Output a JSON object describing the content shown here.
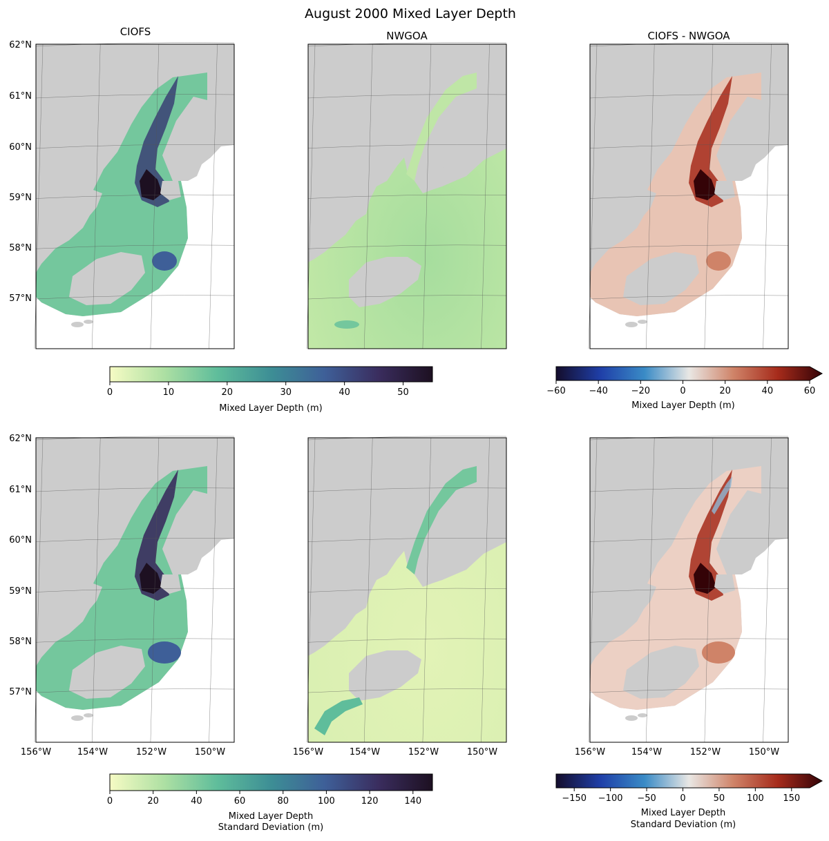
{
  "figure": {
    "title": "August 2000 Mixed Layer Depth",
    "panel_titles": [
      "CIOFS",
      "NWGOA",
      "CIOFS - NWGOA"
    ]
  },
  "axes": {
    "lat_labels": [
      "62°N",
      "61°N",
      "60°N",
      "59°N",
      "58°N",
      "57°N"
    ],
    "lon_labels": [
      "156°W",
      "154°W",
      "152°W",
      "150°W"
    ]
  },
  "colorbars": {
    "top_left": {
      "ticks": [
        "0",
        "10",
        "20",
        "30",
        "40",
        "50"
      ],
      "range": [
        0,
        55
      ],
      "label_lines": [
        "Mixed Layer Depth (m)"
      ]
    },
    "top_right": {
      "ticks": [
        "−60",
        "−40",
        "−20",
        "0",
        "20",
        "40",
        "60"
      ],
      "range": [
        -60,
        60
      ],
      "label_lines": [
        "Mixed Layer Depth (m)"
      ]
    },
    "bottom_left": {
      "ticks": [
        "0",
        "20",
        "40",
        "60",
        "80",
        "100",
        "120",
        "140"
      ],
      "range": [
        0,
        149
      ],
      "label_lines": [
        "Mixed Layer Depth",
        "Standard Deviation (m)"
      ]
    },
    "bottom_right": {
      "ticks": [
        "−150",
        "−100",
        "−50",
        "0",
        "50",
        "100",
        "150"
      ],
      "range": [
        -175,
        175
      ],
      "label_lines": [
        "Mixed Layer Depth",
        "Standard Deviation (m)"
      ]
    }
  },
  "colors": {
    "land": "#cccccc",
    "seq_cmap": [
      "#f6fbc4",
      "#aee0a3",
      "#5fbd9b",
      "#3d8e95",
      "#3e5f98",
      "#3a2d5e",
      "#1d1021"
    ],
    "div_cmap": [
      "#140d2c",
      "#1f3fa8",
      "#3a8bc6",
      "#e9e7e4",
      "#cf8368",
      "#a62b1b",
      "#340307"
    ]
  },
  "chart_data": {
    "type": "heatmap",
    "title": "August 2000 Mixed Layer Depth",
    "panels": [
      {
        "row": 1,
        "name": "CIOFS",
        "cbar": "top_left"
      },
      {
        "row": 1,
        "name": "NWGOA",
        "cbar": "top_left"
      },
      {
        "row": 1,
        "name": "CIOFS - NWGOA",
        "cbar": "top_right"
      },
      {
        "row": 2,
        "name": "CIOFS",
        "cbar": "bottom_left"
      },
      {
        "row": 2,
        "name": "NWGOA",
        "cbar": "bottom_left"
      },
      {
        "row": 2,
        "name": "CIOFS - NWGOA",
        "cbar": "bottom_right"
      }
    ],
    "lat_range": [
      56,
      62
    ],
    "lon_range": [
      -156,
      -149
    ],
    "grid": true
  }
}
